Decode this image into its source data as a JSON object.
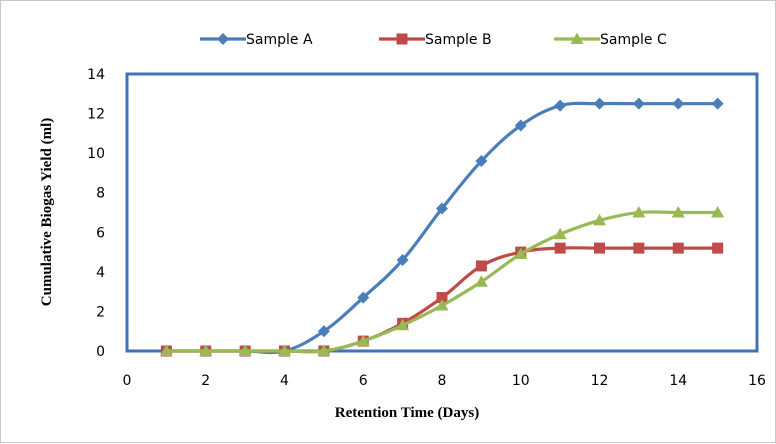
{
  "chart_data": {
    "type": "line",
    "xlabel": "Retention Time (Days)",
    "ylabel": "Cumulative Biogas Yield (ml)",
    "xlim": [
      0,
      16
    ],
    "ylim": [
      0,
      14
    ],
    "x_ticks": [
      0,
      2,
      4,
      6,
      8,
      10,
      12,
      14,
      16
    ],
    "y_ticks": [
      0,
      2,
      4,
      6,
      8,
      10,
      12,
      14
    ],
    "grid": false,
    "legend_position": "top",
    "series": [
      {
        "name": "Sample A",
        "color": "#4a7ebb",
        "marker": "diamond",
        "x": [
          1,
          2,
          3,
          4,
          5,
          6,
          7,
          8,
          9,
          10,
          11,
          12,
          13,
          14,
          15
        ],
        "y": [
          0,
          0,
          0,
          0,
          1.0,
          2.7,
          4.6,
          7.2,
          9.6,
          11.4,
          12.4,
          12.5,
          12.5,
          12.5,
          12.5
        ]
      },
      {
        "name": "Sample B",
        "color": "#be4b48",
        "marker": "square",
        "x": [
          1,
          2,
          3,
          4,
          5,
          6,
          7,
          8,
          9,
          10,
          11,
          12,
          13,
          14,
          15
        ],
        "y": [
          0,
          0,
          0,
          0,
          0,
          0.5,
          1.4,
          2.7,
          4.3,
          5.0,
          5.2,
          5.2,
          5.2,
          5.2,
          5.2
        ]
      },
      {
        "name": "Sample C",
        "color": "#98b954",
        "marker": "triangle",
        "x": [
          1,
          2,
          3,
          4,
          5,
          6,
          7,
          8,
          9,
          10,
          11,
          12,
          13,
          14,
          15
        ],
        "y": [
          0,
          0,
          0,
          0,
          0,
          0.5,
          1.3,
          2.3,
          3.5,
          4.9,
          5.9,
          6.6,
          7.0,
          7.0,
          7.0
        ]
      }
    ]
  }
}
